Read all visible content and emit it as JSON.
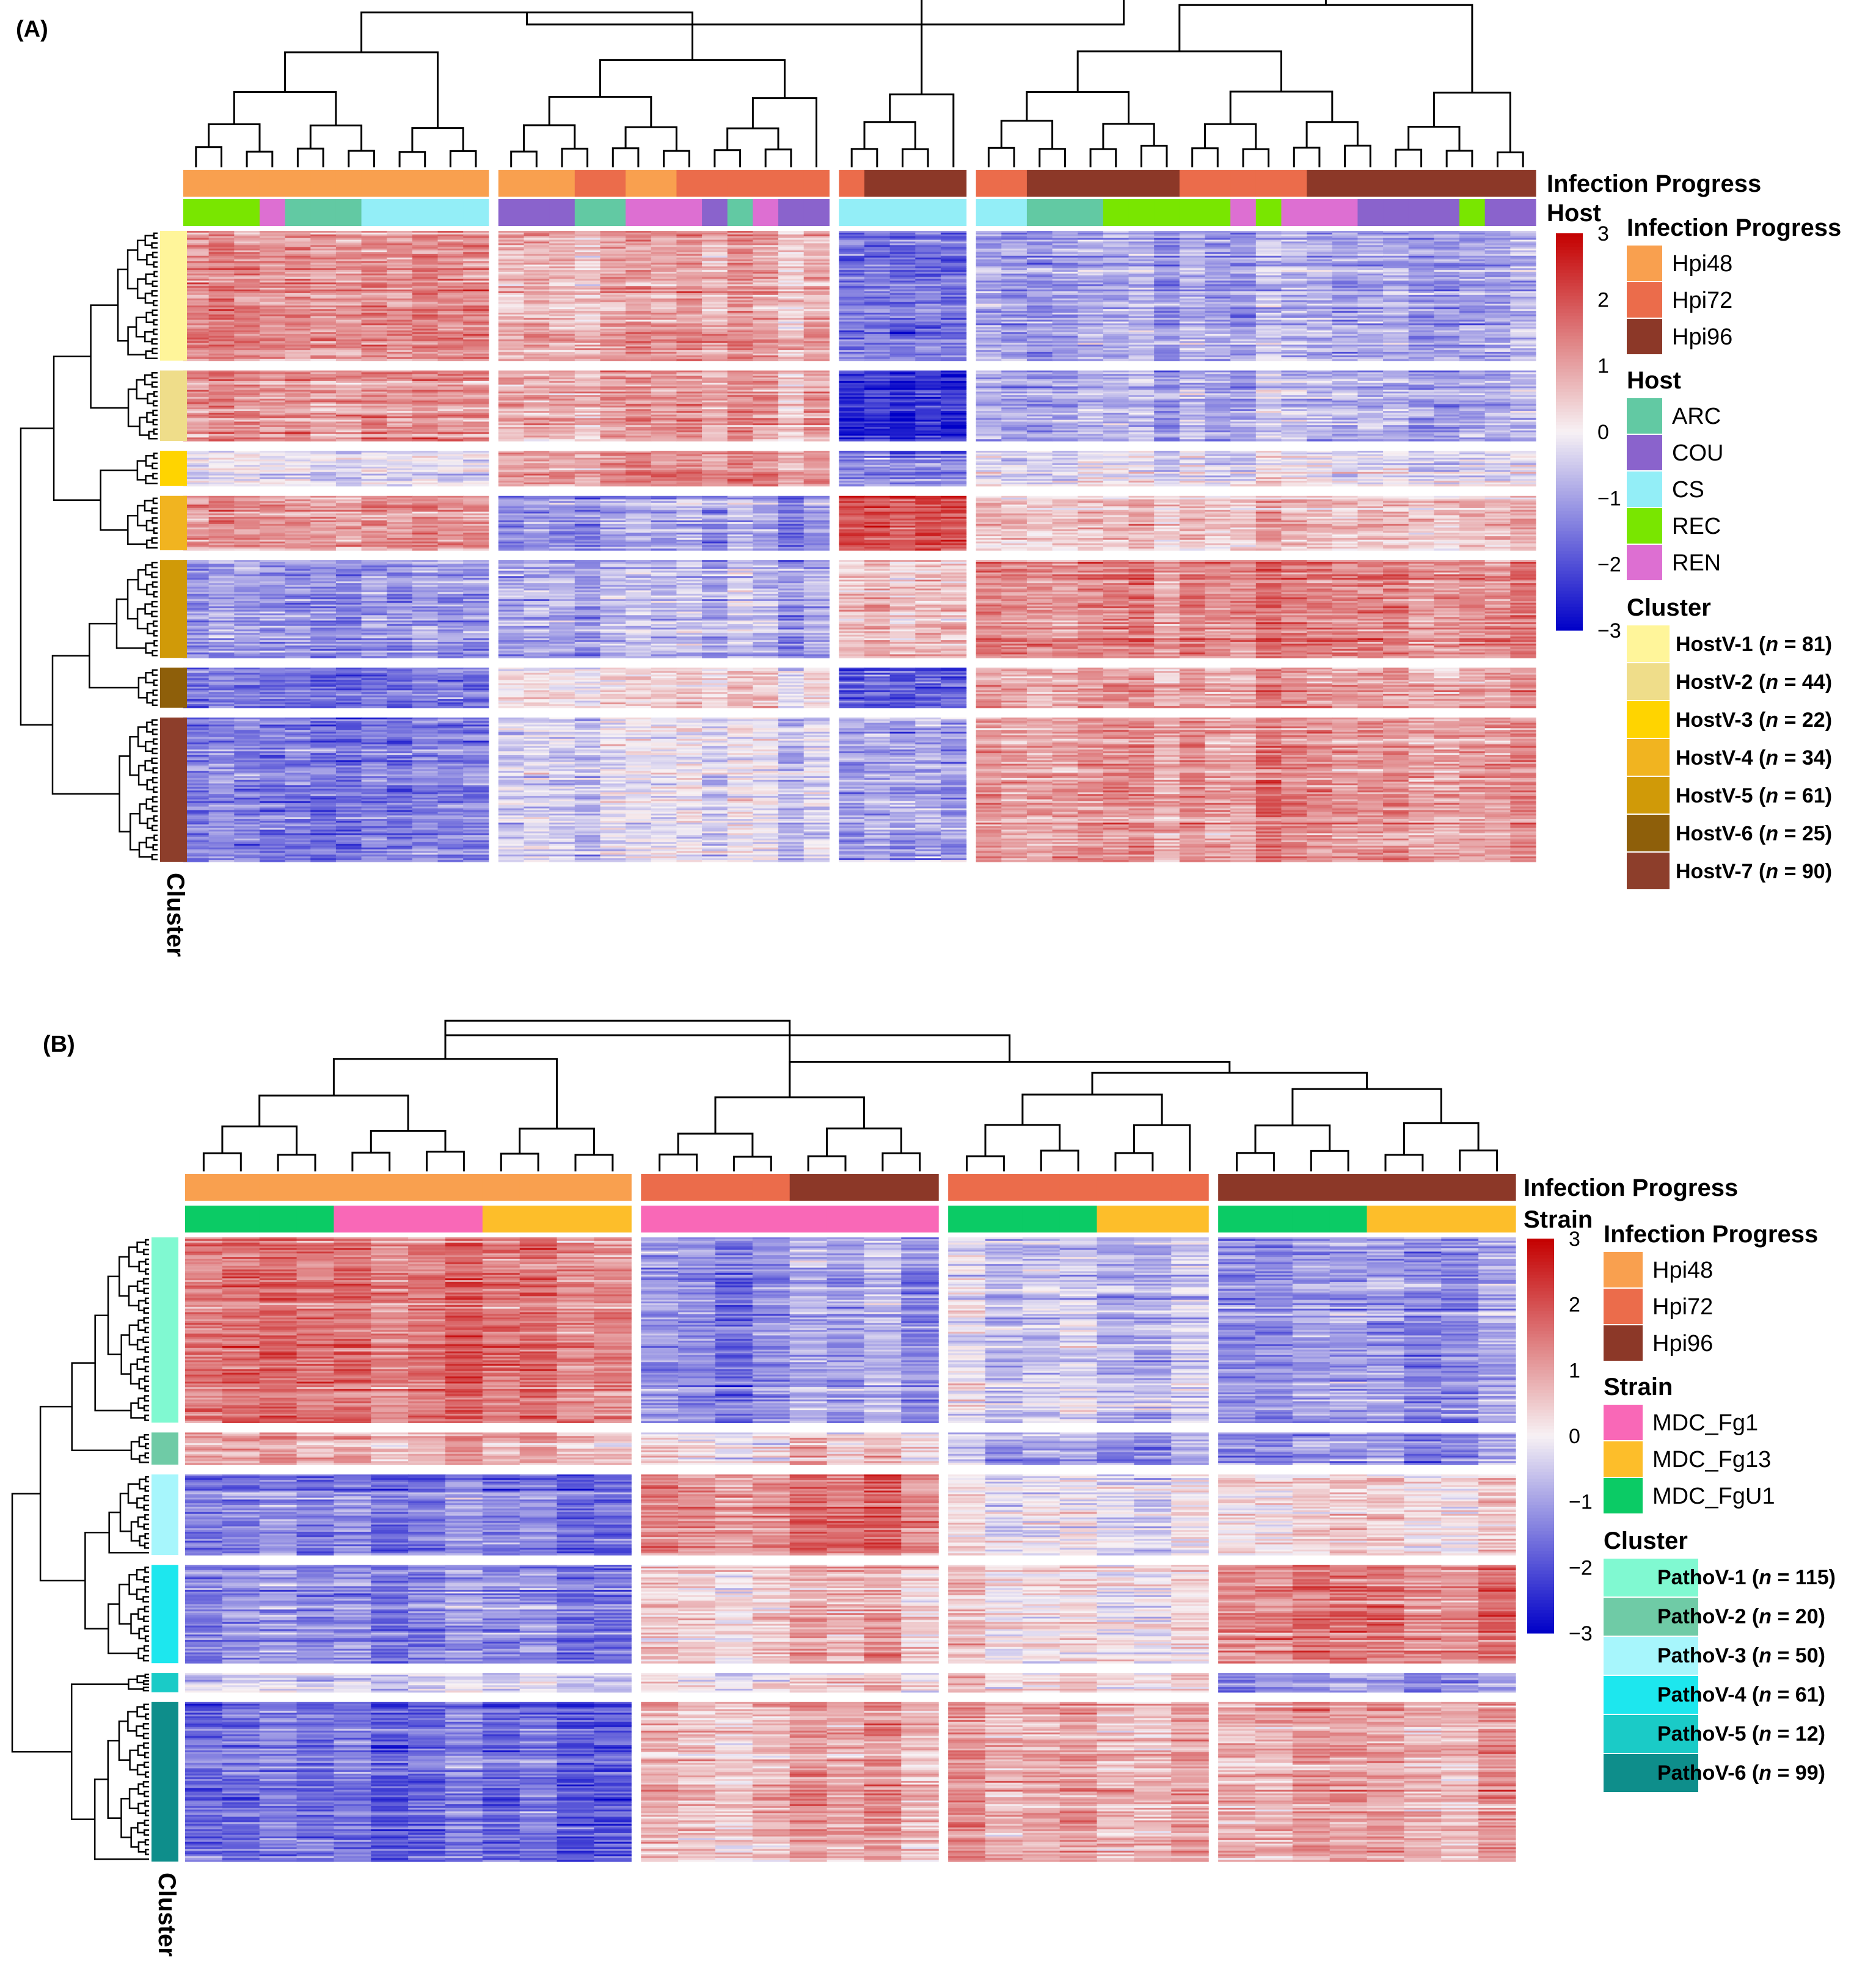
{
  "palette": {
    "Hpi48": "#F9A04F",
    "Hpi72": "#EB6C4B",
    "Hpi96": "#8C3828",
    "ARC": "#62C9A3",
    "COU": "#8A63CC",
    "CS": "#93EEF7",
    "REC": "#79E600",
    "REN": "#DD6FD2",
    "MDC_Fg1": "#F968B7",
    "MDC_Fg13": "#FDBE2A",
    "MDC_FgU1": "#0BCB65",
    "heat_high": "#C40000",
    "heat_mid": "#F7F1F4",
    "heat_low": "#0000C8"
  },
  "chart_data": [
    {
      "type": "heatmap",
      "panel_label": "(A)",
      "title": "",
      "annotation_rows": [
        "Infection Progress",
        "Host"
      ],
      "side_annotation_label": "Cluster",
      "column_groups": [
        {
          "n": 12,
          "infection": [
            "Hpi48",
            "Hpi48",
            "Hpi48",
            "Hpi48",
            "Hpi48",
            "Hpi48",
            "Hpi48",
            "Hpi48",
            "Hpi48",
            "Hpi48",
            "Hpi48",
            "Hpi48"
          ],
          "host": [
            "REC",
            "REC",
            "REC",
            "REN",
            "ARC",
            "ARC",
            "ARC",
            "CS",
            "CS",
            "CS",
            "CS",
            "CS"
          ],
          "pattern": [
            1.4,
            1.3,
            -0.2,
            1.3,
            -1.0,
            -1.4,
            -1.3
          ]
        },
        {
          "n": 13,
          "infection": [
            "Hpi48",
            "Hpi48",
            "Hpi48",
            "Hpi72",
            "Hpi72",
            "Hpi48",
            "Hpi48",
            "Hpi72",
            "Hpi72",
            "Hpi72",
            "Hpi72",
            "Hpi72",
            "Hpi72"
          ],
          "host": [
            "COU",
            "COU",
            "COU",
            "ARC",
            "ARC",
            "REN",
            "REN",
            "REN",
            "COU",
            "ARC",
            "REN",
            "COU",
            "COU"
          ],
          "pattern": [
            0.9,
            1.0,
            1.2,
            -1.0,
            -0.8,
            0.4,
            -0.3
          ]
        },
        {
          "n": 5,
          "infection": [
            "Hpi72",
            "Hpi96",
            "Hpi96",
            "Hpi96",
            "Hpi96"
          ],
          "host": [
            "CS",
            "CS",
            "CS",
            "CS",
            "CS"
          ],
          "pattern": [
            -1.5,
            -2.4,
            -1.3,
            2.0,
            0.6,
            -1.8,
            -1.0
          ]
        },
        {
          "n": 22,
          "infection": [
            "Hpi72",
            "Hpi72",
            "Hpi96",
            "Hpi96",
            "Hpi96",
            "Hpi96",
            "Hpi96",
            "Hpi96",
            "Hpi72",
            "Hpi72",
            "Hpi72",
            "Hpi72",
            "Hpi72",
            "Hpi96",
            "Hpi96",
            "Hpi96",
            "Hpi96",
            "Hpi96",
            "Hpi96",
            "Hpi96",
            "Hpi96",
            "Hpi96"
          ],
          "host": [
            "CS",
            "CS",
            "ARC",
            "ARC",
            "ARC",
            "REC",
            "REC",
            "REC",
            "REC",
            "REC",
            "REN",
            "REC",
            "REN",
            "REN",
            "REN",
            "COU",
            "COU",
            "COU",
            "COU",
            "REC",
            "COU",
            "COU"
          ],
          "pattern": [
            -1.0,
            -0.9,
            -0.2,
            0.6,
            1.3,
            1.0,
            1.1
          ]
        }
      ],
      "row_clusters": [
        {
          "name": "HostV-1",
          "n": 81,
          "color": "#FFF59A"
        },
        {
          "name": "HostV-2",
          "n": 44,
          "color": "#EFDD8A"
        },
        {
          "name": "HostV-3",
          "n": 22,
          "color": "#FFD400"
        },
        {
          "name": "HostV-4",
          "n": 34,
          "color": "#F1B420"
        },
        {
          "name": "HostV-5",
          "n": 61,
          "color": "#D09A08"
        },
        {
          "name": "HostV-6",
          "n": 25,
          "color": "#8E5F0A"
        },
        {
          "name": "HostV-7",
          "n": 90,
          "color": "#8D3E2B"
        }
      ],
      "color_scale": {
        "min": -3,
        "max": 3,
        "ticks": [
          3,
          2,
          1,
          0,
          -1,
          -2,
          -3
        ]
      },
      "legend": {
        "infection_title": "Infection Progress",
        "infection_items": [
          "Hpi48",
          "Hpi72",
          "Hpi96"
        ],
        "second_title": "Host",
        "second_items": [
          "ARC",
          "COU",
          "CS",
          "REC",
          "REN"
        ],
        "cluster_title": "Cluster"
      }
    },
    {
      "type": "heatmap",
      "panel_label": "(B)",
      "title": "",
      "annotation_rows": [
        "Infection Progress",
        "Strain"
      ],
      "side_annotation_label": "Cluster",
      "column_groups": [
        {
          "n": 12,
          "infection": [
            "Hpi48",
            "Hpi48",
            "Hpi48",
            "Hpi48",
            "Hpi48",
            "Hpi48",
            "Hpi48",
            "Hpi48",
            "Hpi48",
            "Hpi48",
            "Hpi48",
            "Hpi48"
          ],
          "host": [
            "MDC_FgU1",
            "MDC_FgU1",
            "MDC_FgU1",
            "MDC_FgU1",
            "MDC_Fg1",
            "MDC_Fg1",
            "MDC_Fg1",
            "MDC_Fg1",
            "MDC_Fg13",
            "MDC_Fg13",
            "MDC_Fg13",
            "MDC_Fg13"
          ],
          "pattern": [
            1.5,
            0.8,
            -1.4,
            -1.3,
            -0.3,
            -1.6
          ]
        },
        {
          "n": 8,
          "infection": [
            "Hpi72",
            "Hpi72",
            "Hpi72",
            "Hpi72",
            "Hpi96",
            "Hpi96",
            "Hpi96",
            "Hpi96"
          ],
          "host": [
            "MDC_Fg1",
            "MDC_Fg1",
            "MDC_Fg1",
            "MDC_Fg1",
            "MDC_Fg1",
            "MDC_Fg1",
            "MDC_Fg1",
            "MDC_Fg1"
          ],
          "pattern": [
            -1.1,
            0.4,
            1.5,
            0.6,
            0.3,
            0.9
          ]
        },
        {
          "n": 7,
          "infection": [
            "Hpi72",
            "Hpi72",
            "Hpi72",
            "Hpi72",
            "Hpi72",
            "Hpi72",
            "Hpi72"
          ],
          "host": [
            "MDC_FgU1",
            "MDC_FgU1",
            "MDC_FgU1",
            "MDC_FgU1",
            "MDC_Fg13",
            "MDC_Fg13",
            "MDC_Fg13"
          ],
          "pattern": [
            -0.6,
            -1.0,
            -0.1,
            0.2,
            0.3,
            0.8
          ]
        },
        {
          "n": 8,
          "infection": [
            "Hpi96",
            "Hpi96",
            "Hpi96",
            "Hpi96",
            "Hpi96",
            "Hpi96",
            "Hpi96",
            "Hpi96"
          ],
          "host": [
            "MDC_FgU1",
            "MDC_FgU1",
            "MDC_FgU1",
            "MDC_FgU1",
            "MDC_Fg13",
            "MDC_Fg13",
            "MDC_Fg13",
            "MDC_Fg13"
          ],
          "pattern": [
            -1.1,
            -1.2,
            0.3,
            1.4,
            -1.2,
            0.9
          ]
        }
      ],
      "row_clusters": [
        {
          "name": "PathoV-1",
          "n": 115,
          "color": "#80F9D1"
        },
        {
          "name": "PathoV-2",
          "n": 20,
          "color": "#6FCBA6"
        },
        {
          "name": "PathoV-3",
          "n": 50,
          "color": "#A7F6FC"
        },
        {
          "name": "PathoV-4",
          "n": 61,
          "color": "#1DE7EE"
        },
        {
          "name": "PathoV-5",
          "n": 12,
          "color": "#1ACBC7"
        },
        {
          "name": "PathoV-6",
          "n": 99,
          "color": "#0E8E8B"
        }
      ],
      "color_scale": {
        "min": -3,
        "max": 3,
        "ticks": [
          3,
          2,
          1,
          0,
          -1,
          -2,
          -3
        ]
      },
      "legend": {
        "infection_title": "Infection Progress",
        "infection_items": [
          "Hpi48",
          "Hpi72",
          "Hpi96"
        ],
        "second_title": "Strain",
        "second_items": [
          "MDC_Fg1",
          "MDC_Fg13",
          "MDC_FgU1"
        ],
        "cluster_title": "Cluster"
      }
    }
  ]
}
